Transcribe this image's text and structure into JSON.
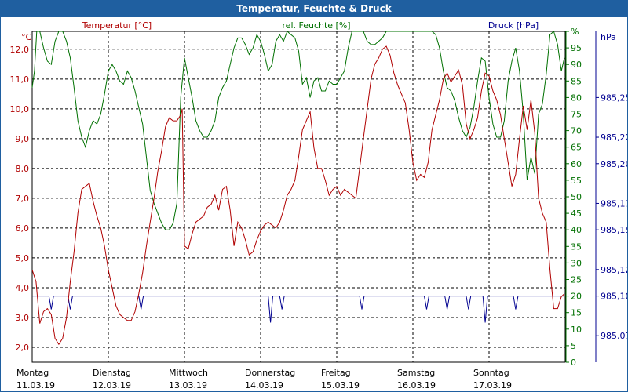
{
  "window": {
    "title": "Temperatur, Feuchte & Druck"
  },
  "chart_data": {
    "type": "line",
    "series_labels": {
      "temp": "Temperatur [°C]",
      "hum": "rel. Feuchte [%]",
      "press": "Druck [hPa]"
    },
    "axes": {
      "temp": {
        "unit": "°C",
        "min": 1.5,
        "max": 12.6,
        "ticks": [
          "2,0",
          "3,0",
          "4,0",
          "5,0",
          "6,0",
          "7,0",
          "8,0",
          "9,0",
          "10,0",
          "11,0",
          "12,0"
        ]
      },
      "hum": {
        "unit": "%",
        "min": 0,
        "max": 100,
        "ticks": [
          "0",
          "5",
          "10",
          "15",
          "20",
          "25",
          "30",
          "35",
          "40",
          "45",
          "50",
          "55",
          "60",
          "65",
          "70",
          "75",
          "80",
          "85",
          "90",
          "95",
          "%"
        ]
      },
      "press": {
        "unit": "hPa",
        "min": 985.05,
        "max": 985.3,
        "ticks": [
          "985,07",
          "985,10",
          "985,12",
          "985,15",
          "985,17",
          "985,20",
          "985,22",
          "985,25"
        ]
      }
    },
    "x_days": [
      [
        "Montag",
        "11.03.19"
      ],
      [
        "Dienstag",
        "12.03.19"
      ],
      [
        "Mittwoch",
        "13.03.19"
      ],
      [
        "Donnerstag",
        "14.03.19"
      ],
      [
        "Freitag",
        "15.03.19"
      ],
      [
        "Samstag",
        "16.03.19"
      ],
      [
        "Sonntag",
        "17.03.19"
      ]
    ],
    "colors": {
      "temp": "#b00000",
      "hum": "#007000",
      "press": "#000090",
      "grid": "#000000"
    },
    "temperature": [
      [
        0,
        4.6
      ],
      [
        0.05,
        4.2
      ],
      [
        0.1,
        2.8
      ],
      [
        0.15,
        3.2
      ],
      [
        0.2,
        3.3
      ],
      [
        0.25,
        3.1
      ],
      [
        0.3,
        2.3
      ],
      [
        0.35,
        2.1
      ],
      [
        0.4,
        2.3
      ],
      [
        0.45,
        3.0
      ],
      [
        0.5,
        4.2
      ],
      [
        0.55,
        5.2
      ],
      [
        0.6,
        6.5
      ],
      [
        0.65,
        7.3
      ],
      [
        0.7,
        7.4
      ],
      [
        0.75,
        7.5
      ],
      [
        0.8,
        6.9
      ],
      [
        0.85,
        6.4
      ],
      [
        0.9,
        6.0
      ],
      [
        0.95,
        5.4
      ],
      [
        1.0,
        4.6
      ],
      [
        1.05,
        4.0
      ],
      [
        1.1,
        3.4
      ],
      [
        1.15,
        3.1
      ],
      [
        1.2,
        3.0
      ],
      [
        1.25,
        2.9
      ],
      [
        1.3,
        2.9
      ],
      [
        1.35,
        3.2
      ],
      [
        1.4,
        3.8
      ],
      [
        1.45,
        4.5
      ],
      [
        1.5,
        5.4
      ],
      [
        1.55,
        6.2
      ],
      [
        1.6,
        7.0
      ],
      [
        1.65,
        7.9
      ],
      [
        1.7,
        8.6
      ],
      [
        1.75,
        9.4
      ],
      [
        1.8,
        9.7
      ],
      [
        1.85,
        9.6
      ],
      [
        1.9,
        9.6
      ],
      [
        1.95,
        9.8
      ],
      [
        1.97,
        10.0
      ],
      [
        2.0,
        5.4
      ],
      [
        2.05,
        5.3
      ],
      [
        2.1,
        5.8
      ],
      [
        2.15,
        6.2
      ],
      [
        2.2,
        6.3
      ],
      [
        2.25,
        6.4
      ],
      [
        2.3,
        6.7
      ],
      [
        2.35,
        6.8
      ],
      [
        2.4,
        7.1
      ],
      [
        2.45,
        6.6
      ],
      [
        2.5,
        7.3
      ],
      [
        2.55,
        7.4
      ],
      [
        2.6,
        6.6
      ],
      [
        2.65,
        5.4
      ],
      [
        2.7,
        6.2
      ],
      [
        2.75,
        6.0
      ],
      [
        2.8,
        5.6
      ],
      [
        2.85,
        5.1
      ],
      [
        2.9,
        5.2
      ],
      [
        2.95,
        5.6
      ],
      [
        3.0,
        5.9
      ],
      [
        3.05,
        6.1
      ],
      [
        3.1,
        6.2
      ],
      [
        3.15,
        6.1
      ],
      [
        3.2,
        6.0
      ],
      [
        3.25,
        6.2
      ],
      [
        3.3,
        6.6
      ],
      [
        3.35,
        7.1
      ],
      [
        3.4,
        7.3
      ],
      [
        3.45,
        7.6
      ],
      [
        3.5,
        8.4
      ],
      [
        3.55,
        9.3
      ],
      [
        3.6,
        9.6
      ],
      [
        3.65,
        9.9
      ],
      [
        3.7,
        8.7
      ],
      [
        3.75,
        8.0
      ],
      [
        3.8,
        8.0
      ],
      [
        3.85,
        7.6
      ],
      [
        3.9,
        7.1
      ],
      [
        3.95,
        7.3
      ],
      [
        4.0,
        7.4
      ],
      [
        4.05,
        7.1
      ],
      [
        4.1,
        7.3
      ],
      [
        4.15,
        7.2
      ],
      [
        4.2,
        7.1
      ],
      [
        4.25,
        7.0
      ],
      [
        4.3,
        8.0
      ],
      [
        4.35,
        9.0
      ],
      [
        4.4,
        10.0
      ],
      [
        4.45,
        11.0
      ],
      [
        4.5,
        11.5
      ],
      [
        4.55,
        11.7
      ],
      [
        4.6,
        12.0
      ],
      [
        4.65,
        12.1
      ],
      [
        4.7,
        11.8
      ],
      [
        4.75,
        11.2
      ],
      [
        4.8,
        10.8
      ],
      [
        4.85,
        10.5
      ],
      [
        4.9,
        10.2
      ],
      [
        4.95,
        9.3
      ],
      [
        5.0,
        8.2
      ],
      [
        5.05,
        7.6
      ],
      [
        5.1,
        7.8
      ],
      [
        5.15,
        7.7
      ],
      [
        5.2,
        8.2
      ],
      [
        5.25,
        9.3
      ],
      [
        5.3,
        9.8
      ],
      [
        5.35,
        10.3
      ],
      [
        5.4,
        11.0
      ],
      [
        5.45,
        11.2
      ],
      [
        5.5,
        10.9
      ],
      [
        5.55,
        11.1
      ],
      [
        5.6,
        11.3
      ],
      [
        5.65,
        10.8
      ],
      [
        5.7,
        9.5
      ],
      [
        5.75,
        9.0
      ],
      [
        5.8,
        9.3
      ],
      [
        5.85,
        9.7
      ],
      [
        5.9,
        10.6
      ],
      [
        5.95,
        11.2
      ],
      [
        6.0,
        11.1
      ],
      [
        6.05,
        10.6
      ],
      [
        6.1,
        10.3
      ],
      [
        6.15,
        9.8
      ],
      [
        6.2,
        9.0
      ],
      [
        6.25,
        8.2
      ],
      [
        6.3,
        7.4
      ],
      [
        6.35,
        7.8
      ],
      [
        6.4,
        9.0
      ],
      [
        6.45,
        10.1
      ],
      [
        6.5,
        9.3
      ],
      [
        6.55,
        10.3
      ],
      [
        6.6,
        9.2
      ],
      [
        6.65,
        7.0
      ],
      [
        6.7,
        6.5
      ],
      [
        6.75,
        6.2
      ],
      [
        6.8,
        4.6
      ],
      [
        6.85,
        3.3
      ],
      [
        6.9,
        3.3
      ],
      [
        6.95,
        3.7
      ],
      [
        6.99,
        3.8
      ]
    ],
    "humidity": [
      [
        0,
        83
      ],
      [
        0.03,
        88
      ],
      [
        0.06,
        100
      ],
      [
        0.1,
        100
      ],
      [
        0.15,
        95
      ],
      [
        0.2,
        91
      ],
      [
        0.25,
        90
      ],
      [
        0.3,
        97
      ],
      [
        0.35,
        100
      ],
      [
        0.4,
        100
      ],
      [
        0.45,
        97
      ],
      [
        0.5,
        92
      ],
      [
        0.55,
        83
      ],
      [
        0.6,
        73
      ],
      [
        0.65,
        68
      ],
      [
        0.7,
        65
      ],
      [
        0.75,
        70
      ],
      [
        0.8,
        73
      ],
      [
        0.85,
        72
      ],
      [
        0.9,
        75
      ],
      [
        0.95,
        81
      ],
      [
        1.0,
        88
      ],
      [
        1.05,
        90
      ],
      [
        1.1,
        88
      ],
      [
        1.15,
        85
      ],
      [
        1.2,
        84
      ],
      [
        1.25,
        88
      ],
      [
        1.3,
        86
      ],
      [
        1.35,
        82
      ],
      [
        1.4,
        77
      ],
      [
        1.45,
        72
      ],
      [
        1.5,
        62
      ],
      [
        1.55,
        52
      ],
      [
        1.6,
        48
      ],
      [
        1.65,
        45
      ],
      [
        1.7,
        42
      ],
      [
        1.75,
        40
      ],
      [
        1.8,
        40
      ],
      [
        1.85,
        42
      ],
      [
        1.9,
        48
      ],
      [
        1.95,
        80
      ],
      [
        2.0,
        92
      ],
      [
        2.05,
        86
      ],
      [
        2.1,
        80
      ],
      [
        2.15,
        73
      ],
      [
        2.2,
        70
      ],
      [
        2.25,
        68
      ],
      [
        2.3,
        68
      ],
      [
        2.35,
        70
      ],
      [
        2.4,
        73
      ],
      [
        2.45,
        80
      ],
      [
        2.5,
        83
      ],
      [
        2.55,
        85
      ],
      [
        2.6,
        90
      ],
      [
        2.65,
        95
      ],
      [
        2.7,
        98
      ],
      [
        2.75,
        98
      ],
      [
        2.8,
        96
      ],
      [
        2.85,
        93
      ],
      [
        2.9,
        95
      ],
      [
        2.95,
        99
      ],
      [
        3.0,
        97
      ],
      [
        3.05,
        93
      ],
      [
        3.1,
        88
      ],
      [
        3.15,
        90
      ],
      [
        3.2,
        97
      ],
      [
        3.25,
        99
      ],
      [
        3.3,
        97
      ],
      [
        3.35,
        100
      ],
      [
        3.4,
        99
      ],
      [
        3.45,
        98
      ],
      [
        3.5,
        94
      ],
      [
        3.55,
        84
      ],
      [
        3.6,
        86
      ],
      [
        3.65,
        80
      ],
      [
        3.7,
        85
      ],
      [
        3.75,
        86
      ],
      [
        3.8,
        82
      ],
      [
        3.85,
        82
      ],
      [
        3.9,
        85
      ],
      [
        3.95,
        84
      ],
      [
        4.0,
        84
      ],
      [
        4.05,
        86
      ],
      [
        4.1,
        88
      ],
      [
        4.15,
        95
      ],
      [
        4.2,
        100
      ],
      [
        4.25,
        100
      ],
      [
        4.3,
        100
      ],
      [
        4.35,
        100
      ],
      [
        4.4,
        97
      ],
      [
        4.45,
        96
      ],
      [
        4.5,
        96
      ],
      [
        4.55,
        97
      ],
      [
        4.6,
        98
      ],
      [
        4.65,
        100
      ],
      [
        4.7,
        100
      ],
      [
        4.75,
        100
      ],
      [
        4.8,
        100
      ],
      [
        4.85,
        100
      ],
      [
        4.9,
        100
      ],
      [
        4.95,
        100
      ],
      [
        5.0,
        100
      ],
      [
        5.05,
        100
      ],
      [
        5.1,
        100
      ],
      [
        5.15,
        100
      ],
      [
        5.2,
        100
      ],
      [
        5.25,
        100
      ],
      [
        5.3,
        99
      ],
      [
        5.35,
        95
      ],
      [
        5.4,
        88
      ],
      [
        5.45,
        83
      ],
      [
        5.5,
        82
      ],
      [
        5.55,
        79
      ],
      [
        5.6,
        74
      ],
      [
        5.65,
        70
      ],
      [
        5.7,
        68
      ],
      [
        5.75,
        71
      ],
      [
        5.8,
        77
      ],
      [
        5.85,
        85
      ],
      [
        5.9,
        92
      ],
      [
        5.95,
        91
      ],
      [
        6.0,
        80
      ],
      [
        6.05,
        72
      ],
      [
        6.1,
        68
      ],
      [
        6.15,
        68
      ],
      [
        6.2,
        73
      ],
      [
        6.25,
        85
      ],
      [
        6.3,
        91
      ],
      [
        6.35,
        95
      ],
      [
        6.4,
        88
      ],
      [
        6.45,
        75
      ],
      [
        6.5,
        55
      ],
      [
        6.55,
        62
      ],
      [
        6.6,
        57
      ],
      [
        6.65,
        75
      ],
      [
        6.7,
        78
      ],
      [
        6.75,
        87
      ],
      [
        6.8,
        99
      ],
      [
        6.85,
        100
      ],
      [
        6.9,
        96
      ],
      [
        6.95,
        88
      ],
      [
        6.99,
        92
      ]
    ],
    "pressure": [
      [
        0,
        985.1
      ],
      [
        0.22,
        985.1
      ],
      [
        0.25,
        985.09
      ],
      [
        0.28,
        985.1
      ],
      [
        0.47,
        985.1
      ],
      [
        0.5,
        985.09
      ],
      [
        0.53,
        985.1
      ],
      [
        1.4,
        985.1
      ],
      [
        1.43,
        985.09
      ],
      [
        1.46,
        985.1
      ],
      [
        3.1,
        985.1
      ],
      [
        3.13,
        985.08
      ],
      [
        3.16,
        985.1
      ],
      [
        3.25,
        985.1
      ],
      [
        3.28,
        985.09
      ],
      [
        3.31,
        985.1
      ],
      [
        4.3,
        985.1
      ],
      [
        4.33,
        985.09
      ],
      [
        4.36,
        985.1
      ],
      [
        5.15,
        985.1
      ],
      [
        5.18,
        985.09
      ],
      [
        5.21,
        985.1
      ],
      [
        5.42,
        985.1
      ],
      [
        5.45,
        985.09
      ],
      [
        5.48,
        985.1
      ],
      [
        5.7,
        985.1
      ],
      [
        5.73,
        985.09
      ],
      [
        5.76,
        985.1
      ],
      [
        5.92,
        985.1
      ],
      [
        5.95,
        985.08
      ],
      [
        5.98,
        985.1
      ],
      [
        6.32,
        985.1
      ],
      [
        6.35,
        985.09
      ],
      [
        6.38,
        985.1
      ],
      [
        6.99,
        985.1
      ]
    ]
  }
}
